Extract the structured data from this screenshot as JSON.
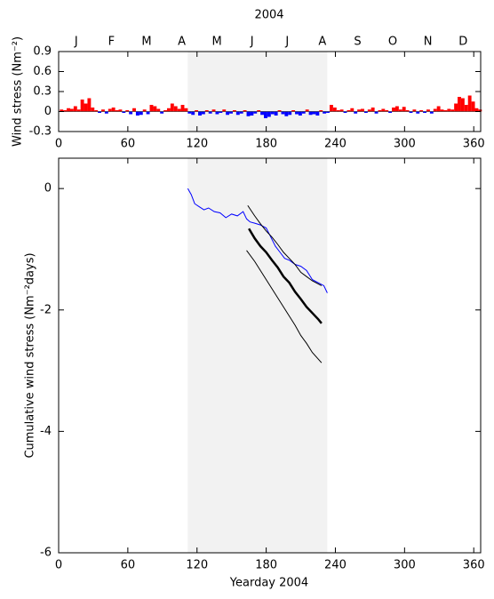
{
  "chart_data": [
    {
      "type": "bar",
      "title": "2004",
      "month_labels": [
        "J",
        "F",
        "M",
        "A",
        "M",
        "J",
        "J",
        "A",
        "S",
        "O",
        "N",
        "D"
      ],
      "ylabel": "Wind stress (Nm⁻²)",
      "x": [
        1,
        4,
        7,
        10,
        13,
        16,
        19,
        22,
        25,
        28,
        31,
        34,
        37,
        40,
        43,
        46,
        49,
        52,
        55,
        58,
        61,
        64,
        67,
        70,
        73,
        76,
        79,
        82,
        85,
        88,
        91,
        94,
        97,
        100,
        103,
        106,
        109,
        112,
        115,
        118,
        121,
        124,
        127,
        130,
        133,
        136,
        139,
        142,
        145,
        148,
        151,
        154,
        157,
        160,
        163,
        166,
        169,
        172,
        175,
        178,
        181,
        184,
        187,
        190,
        193,
        196,
        199,
        202,
        205,
        208,
        211,
        214,
        217,
        220,
        223,
        226,
        229,
        232,
        235,
        238,
        241,
        244,
        247,
        250,
        253,
        256,
        259,
        262,
        265,
        268,
        271,
        274,
        277,
        280,
        283,
        286,
        289,
        292,
        295,
        298,
        301,
        304,
        307,
        310,
        313,
        316,
        319,
        322,
        325,
        328,
        331,
        334,
        337,
        340,
        343,
        346,
        349,
        352,
        355,
        358,
        361,
        364
      ],
      "values": [
        0.03,
        0.02,
        0.05,
        0.04,
        0.08,
        0.03,
        0.18,
        0.12,
        0.2,
        0.06,
        0.02,
        -0.02,
        0.03,
        -0.03,
        0.04,
        0.06,
        0.02,
        0.03,
        -0.02,
        0.02,
        -0.04,
        0.05,
        -0.06,
        -0.05,
        0.03,
        -0.04,
        0.1,
        0.08,
        0.04,
        -0.03,
        0.02,
        0.05,
        0.12,
        0.08,
        0.04,
        0.1,
        0.05,
        -0.03,
        -0.05,
        0.02,
        -0.06,
        -0.04,
        0.02,
        -0.03,
        0.03,
        -0.04,
        -0.02,
        0.03,
        -0.05,
        -0.03,
        0.02,
        -0.05,
        -0.03,
        0.02,
        -0.07,
        -0.06,
        -0.03,
        0.02,
        -0.05,
        -0.1,
        -0.08,
        -0.04,
        -0.06,
        0.02,
        -0.04,
        -0.07,
        -0.05,
        0.02,
        -0.04,
        -0.06,
        -0.03,
        0.03,
        -0.05,
        -0.04,
        -0.06,
        0.02,
        -0.03,
        -0.02,
        0.1,
        0.06,
        0.02,
        0.03,
        -0.02,
        0.02,
        0.05,
        -0.03,
        0.03,
        0.04,
        -0.02,
        0.03,
        0.06,
        -0.03,
        0.02,
        0.04,
        0.02,
        -0.02,
        0.06,
        0.08,
        0.03,
        0.07,
        0.02,
        -0.02,
        0.03,
        -0.03,
        0.02,
        -0.02,
        0.03,
        -0.03,
        0.04,
        0.08,
        0.03,
        0.02,
        0.04,
        0.03,
        0.12,
        0.22,
        0.2,
        0.1,
        0.24,
        0.15,
        0.05,
        0.03
      ],
      "bar_width": 3,
      "positive_color": "#ff0000",
      "negative_color": "#0000ff",
      "shaded_x": [
        112,
        233
      ],
      "shade_color": "#f2f2f2",
      "xlim": [
        0,
        366
      ],
      "xticks": [
        0,
        60,
        120,
        180,
        240,
        300,
        360
      ],
      "ylim": [
        -0.3,
        0.9
      ],
      "yticks": [
        -0.3,
        0,
        0.3,
        0.6,
        0.9
      ]
    },
    {
      "type": "line",
      "xlabel": "Yearday 2004",
      "ylabel": "Cumulative wind stress (Nm⁻²days)",
      "series": [
        {
          "color": "#0000ff",
          "width": 1,
          "x": [
            112,
            115,
            118,
            122,
            126,
            130,
            135,
            140,
            145,
            150,
            155,
            160,
            163,
            166,
            170,
            175,
            180,
            184,
            188,
            192,
            196,
            200,
            205,
            210,
            215,
            220,
            225,
            230,
            233
          ],
          "values": [
            0,
            -0.1,
            -0.25,
            -0.3,
            -0.35,
            -0.32,
            -0.38,
            -0.4,
            -0.48,
            -0.42,
            -0.45,
            -0.38,
            -0.5,
            -0.55,
            -0.57,
            -0.6,
            -0.65,
            -0.8,
            -0.95,
            -1.05,
            -1.15,
            -1.18,
            -1.25,
            -1.28,
            -1.35,
            -1.5,
            -1.55,
            -1.6,
            -1.72
          ]
        },
        {
          "color": "#000000",
          "width": 2.5,
          "x": [
            165,
            170,
            175,
            180,
            185,
            190,
            195,
            200,
            205,
            210,
            215,
            220,
            225,
            228
          ],
          "values": [
            -0.66,
            -0.82,
            -0.95,
            -1.05,
            -1.18,
            -1.3,
            -1.45,
            -1.55,
            -1.7,
            -1.82,
            -1.95,
            -2.05,
            -2.15,
            -2.22
          ]
        },
        {
          "color": "#000000",
          "width": 1,
          "x": [
            164,
            170,
            175,
            180,
            185,
            190,
            195,
            200,
            205,
            210,
            215,
            220,
            228
          ],
          "values": [
            -0.28,
            -0.45,
            -0.58,
            -0.7,
            -0.8,
            -0.92,
            -1.05,
            -1.15,
            -1.25,
            -1.38,
            -1.45,
            -1.52,
            -1.6
          ]
        },
        {
          "color": "#000000",
          "width": 1,
          "x": [
            163,
            170,
            175,
            180,
            185,
            190,
            195,
            200,
            205,
            210,
            215,
            220,
            228
          ],
          "values": [
            -1.02,
            -1.2,
            -1.35,
            -1.5,
            -1.65,
            -1.8,
            -1.95,
            -2.1,
            -2.25,
            -2.42,
            -2.55,
            -2.7,
            -2.87
          ]
        }
      ],
      "shaded_x": [
        112,
        233
      ],
      "shade_color": "#f2f2f2",
      "xlim": [
        0,
        366
      ],
      "xticks": [
        0,
        60,
        120,
        180,
        240,
        300,
        360
      ],
      "ylim": [
        -6,
        0.5
      ],
      "yticks": [
        -6,
        -4,
        -2,
        0
      ]
    }
  ]
}
